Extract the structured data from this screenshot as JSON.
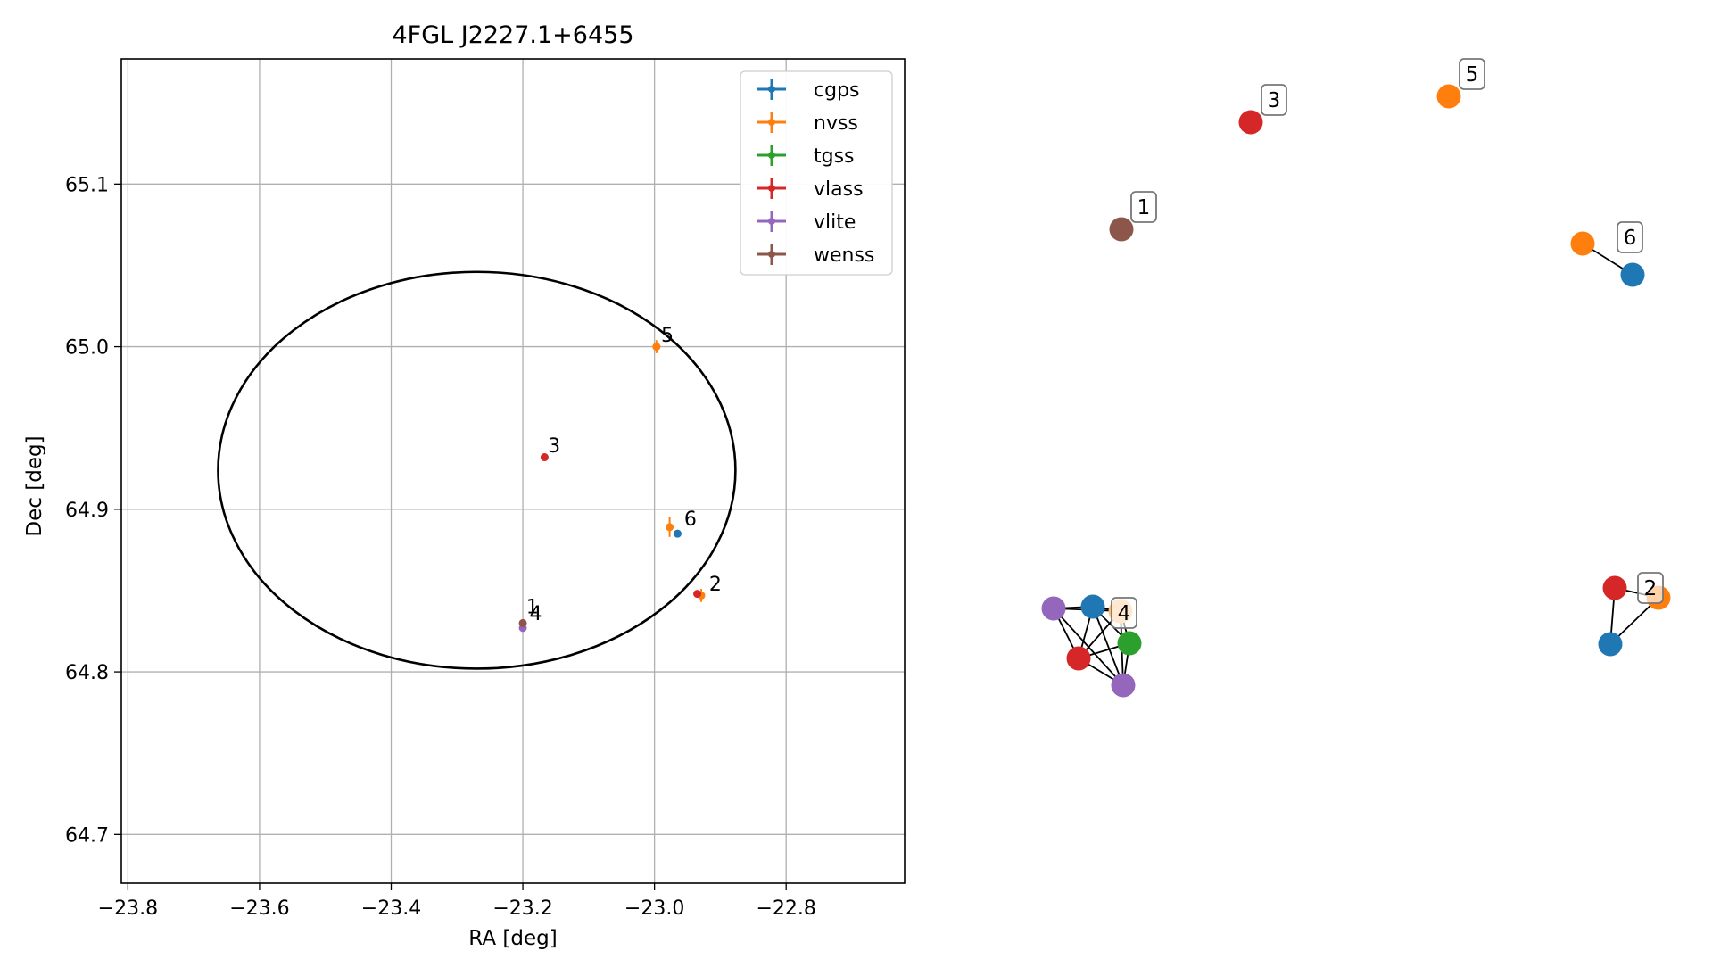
{
  "chart_data": [
    {
      "type": "scatter",
      "title": "4FGL J2227.1+6455",
      "xlabel": "RA [deg]",
      "ylabel": "Dec [deg]",
      "xlim": [
        -23.81,
        -22.62
      ],
      "ylim": [
        64.67,
        65.177
      ],
      "xticks": [
        -23.8,
        -23.6,
        -23.4,
        -23.2,
        -23.0,
        -22.8
      ],
      "xtick_labels": [
        "−23.8",
        "−23.6",
        "−23.4",
        "−23.2",
        "−23.0",
        "−22.8"
      ],
      "yticks": [
        64.7,
        64.8,
        64.9,
        65.0,
        65.1
      ],
      "ytick_labels": [
        "64.7",
        "64.8",
        "64.9",
        "65.0",
        "65.1"
      ],
      "grid": true,
      "legend_position": "top-right",
      "ellipse": {
        "center": [
          -23.27,
          64.924
        ],
        "rx_deg": 0.393,
        "ry_deg": 0.122,
        "color": "#000000"
      },
      "series": [
        {
          "name": "cgps",
          "color": "#1f77b4",
          "points": [
            {
              "x": -22.965,
              "y": 64.885
            }
          ]
        },
        {
          "name": "nvss",
          "color": "#ff7f0e",
          "points": [
            {
              "x": -22.997,
              "y": 65.0,
              "yerr": 0.004
            },
            {
              "x": -22.977,
              "y": 64.889,
              "yerr": 0.006
            },
            {
              "x": -22.929,
              "y": 64.847,
              "yerr": 0.004
            }
          ]
        },
        {
          "name": "tgss",
          "color": "#2ca02c",
          "points": []
        },
        {
          "name": "vlass",
          "color": "#d62728",
          "points": [
            {
              "x": -23.167,
              "y": 64.932
            },
            {
              "x": -22.935,
              "y": 64.848
            }
          ]
        },
        {
          "name": "vlite",
          "color": "#9467bd",
          "points": [
            {
              "x": -23.2,
              "y": 64.827
            }
          ]
        },
        {
          "name": "wenss",
          "color": "#8c564b",
          "points": [
            {
              "x": -23.2,
              "y": 64.83
            }
          ]
        }
      ],
      "annotations": [
        {
          "text": "1",
          "x": -23.195,
          "y": 64.836
        },
        {
          "text": "4",
          "x": -23.19,
          "y": 64.832
        },
        {
          "text": "2",
          "x": -22.917,
          "y": 64.85
        },
        {
          "text": "3",
          "x": -23.162,
          "y": 64.935
        },
        {
          "text": "5",
          "x": -22.99,
          "y": 65.003
        },
        {
          "text": "6",
          "x": -22.955,
          "y": 64.89
        }
      ]
    },
    {
      "type": "network",
      "nodes": [
        {
          "id": "n1",
          "color": "#8c564b"
        },
        {
          "id": "n3",
          "color": "#d62728"
        },
        {
          "id": "n5",
          "color": "#ff7f0e"
        },
        {
          "id": "n6a",
          "color": "#ff7f0e"
        },
        {
          "id": "n6b",
          "color": "#1f77b4"
        },
        {
          "id": "g4p1",
          "color": "#9467bd"
        },
        {
          "id": "g4b",
          "color": "#1f77b4"
        },
        {
          "id": "g4o",
          "color": "#ffbb78"
        },
        {
          "id": "g4g",
          "color": "#2ca02c"
        },
        {
          "id": "g4r",
          "color": "#d62728"
        },
        {
          "id": "g4p2",
          "color": "#9467bd"
        },
        {
          "id": "g2r",
          "color": "#d62728"
        },
        {
          "id": "g2o",
          "color": "#ff7f0e"
        },
        {
          "id": "g2b",
          "color": "#1f77b4"
        }
      ],
      "edges": [
        [
          "n6a",
          "n6b"
        ],
        [
          "g4p1",
          "g4b"
        ],
        [
          "g4p1",
          "g4o"
        ],
        [
          "g4p1",
          "g4r"
        ],
        [
          "g4p1",
          "g4p2"
        ],
        [
          "g4b",
          "g4o"
        ],
        [
          "g4b",
          "g4g"
        ],
        [
          "g4b",
          "g4r"
        ],
        [
          "g4b",
          "g4p2"
        ],
        [
          "g4o",
          "g4g"
        ],
        [
          "g4o",
          "g4r"
        ],
        [
          "g4o",
          "g4p2"
        ],
        [
          "g4g",
          "g4r"
        ],
        [
          "g4g",
          "g4p2"
        ],
        [
          "g4r",
          "g4p2"
        ],
        [
          "g2r",
          "g2o"
        ],
        [
          "g2r",
          "g2b"
        ],
        [
          "g2o",
          "g2b"
        ]
      ],
      "labels": [
        {
          "text": "1",
          "node": "n1"
        },
        {
          "text": "3",
          "node": "n3"
        },
        {
          "text": "5",
          "node": "n5"
        },
        {
          "text": "6",
          "node": "n6b"
        },
        {
          "text": "4",
          "node": "g4b"
        },
        {
          "text": "2",
          "node": "g2r"
        }
      ]
    }
  ]
}
